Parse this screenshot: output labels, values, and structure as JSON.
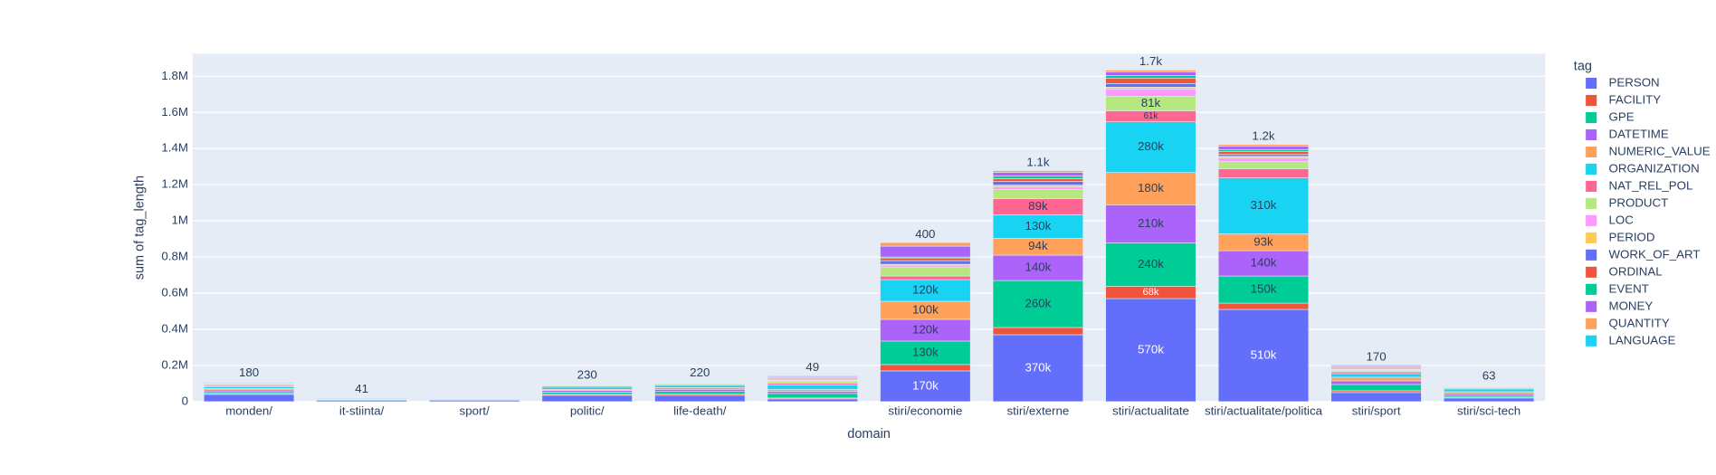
{
  "chart_data": {
    "type": "bar",
    "stacked": true,
    "x_label": "domain",
    "y_label": "sum of tag_length",
    "legend_title": "tag",
    "legend_position": "right",
    "grid": true,
    "categories": [
      "monden/",
      "it-stiinta/",
      "sport/",
      "politic/",
      "life-death/",
      null,
      "stiri/economie",
      "stiri/externe",
      "stiri/actualitate",
      "stiri/actualitate/politica",
      "stiri/sport",
      "stiri/sci-tech"
    ],
    "ylim": [
      0,
      1925000
    ],
    "yticks": [
      0,
      {
        "value": 200000,
        "label": "0.2M"
      },
      {
        "value": 400000,
        "label": "0.4M"
      },
      {
        "value": 600000,
        "label": "0.6M"
      },
      {
        "value": 800000,
        "label": "0.8M"
      },
      {
        "value": 1000000,
        "label": "1M"
      },
      {
        "value": 1200000,
        "label": "1.2M"
      },
      {
        "value": 1400000,
        "label": "1.4M"
      },
      {
        "value": 1600000,
        "label": "1.6M"
      },
      {
        "value": 1800000,
        "label": "1.8M"
      }
    ],
    "series": [
      {
        "name": "PERSON",
        "color": "#636efa",
        "values": [
          40000,
          8000,
          8000,
          35000,
          35000,
          15000,
          170000,
          370000,
          570000,
          510000,
          50000,
          20000
        ],
        "value_labels": [
          null,
          null,
          null,
          null,
          null,
          null,
          "170k",
          "370k",
          "570k",
          "510k",
          null,
          null
        ]
      },
      {
        "name": "FACILITY",
        "color": "#EF553B",
        "values": [
          5000,
          1000,
          1000,
          5000,
          6000,
          5000,
          35000,
          40000,
          68000,
          35000,
          10000,
          5000
        ],
        "value_labels": [
          null,
          null,
          null,
          null,
          null,
          null,
          null,
          null,
          "68k",
          null,
          null,
          null
        ]
      },
      {
        "name": "GPE",
        "color": "#00cc96",
        "values": [
          10000,
          2000,
          3000,
          12000,
          15000,
          25000,
          130000,
          260000,
          240000,
          150000,
          35000,
          10000
        ],
        "value_labels": [
          null,
          null,
          null,
          null,
          null,
          null,
          "130k",
          "260k",
          "240k",
          "150k",
          null,
          null
        ]
      },
      {
        "name": "DATETIME",
        "color": "#ab63fa",
        "values": [
          10000,
          3000,
          2000,
          10000,
          12000,
          12000,
          120000,
          140000,
          210000,
          140000,
          20000,
          10000
        ],
        "value_labels": [
          null,
          null,
          null,
          null,
          null,
          null,
          "120k",
          "140k",
          "210k",
          "140k",
          null,
          null
        ]
      },
      {
        "name": "NUMERIC_VALUE",
        "color": "#FFA15A",
        "values": [
          8000,
          2000,
          2000,
          6000,
          10000,
          10000,
          100000,
          94000,
          180000,
          93000,
          20000,
          10000
        ],
        "value_labels": [
          null,
          null,
          null,
          null,
          null,
          null,
          "100k",
          "94k",
          "180k",
          "93k",
          null,
          null
        ]
      },
      {
        "name": "ORGANIZATION",
        "color": "#19d3f3",
        "values": [
          10000,
          4000,
          3000,
          12000,
          12000,
          25000,
          120000,
          130000,
          280000,
          310000,
          20000,
          15000
        ],
        "value_labels": [
          null,
          null,
          null,
          null,
          null,
          null,
          "120k",
          "130k",
          "280k",
          "310k",
          null,
          null
        ]
      },
      {
        "name": "NAT_REL_POL",
        "color": "#FF6692",
        "values": [
          5000,
          1000,
          500,
          6000,
          5000,
          10000,
          20000,
          89000,
          61000,
          50000,
          10000,
          5000
        ],
        "value_labels": [
          null,
          null,
          null,
          null,
          null,
          null,
          null,
          "89k",
          "61k",
          null,
          null,
          null
        ]
      },
      {
        "name": "PRODUCT",
        "color": "#B6E880",
        "values": [
          8000,
          2000,
          500,
          4000,
          5000,
          10000,
          50000,
          50000,
          81000,
          40000,
          5000,
          5000
        ],
        "value_labels": [
          null,
          null,
          null,
          null,
          null,
          null,
          null,
          null,
          "81k",
          null,
          null,
          null
        ]
      },
      {
        "name": "LOC",
        "color": "#FF97FF",
        "values": [
          3000,
          500,
          300,
          2000,
          3000,
          5000,
          10000,
          15000,
          40000,
          20000,
          5000,
          3000
        ]
      },
      {
        "name": "PERIOD",
        "color": "#FECB52",
        "values": [
          2000,
          300,
          200,
          1000,
          2000,
          3000,
          5000,
          10000,
          10000,
          10000,
          3000,
          2000
        ]
      },
      {
        "name": "WORK_OF_ART",
        "color": "#636efa",
        "values": [
          4000,
          500,
          300,
          2000,
          3000,
          5000,
          20000,
          20000,
          20000,
          10000,
          5000,
          3000
        ]
      },
      {
        "name": "ORDINAL",
        "color": "#EF553B",
        "values": [
          2000,
          300,
          200,
          2000,
          2000,
          5000,
          15000,
          15000,
          30000,
          15000,
          5000,
          3000
        ]
      },
      {
        "name": "EVENT",
        "color": "#00cc96",
        "values": [
          2000,
          300,
          200,
          1000,
          2000,
          5000,
          5000,
          15000,
          15000,
          10000,
          5000,
          2000
        ]
      },
      {
        "name": "MONEY",
        "color": "#ab63fa",
        "values": [
          3000,
          500,
          300,
          2000,
          2000,
          5000,
          60000,
          20000,
          20000,
          20000,
          5000,
          3000
        ]
      },
      {
        "name": "QUANTITY",
        "color": "#FFA15A",
        "values": [
          2000,
          300,
          200,
          1000,
          1000,
          5000,
          20000,
          10000,
          10000,
          10000,
          5000,
          2000
        ]
      },
      {
        "name": "LANGUAGE",
        "color": "#19d3f3",
        "values": [
          180,
          41,
          null,
          230,
          220,
          49,
          400,
          1100,
          1700,
          1200,
          170,
          63
        ],
        "value_labels": [
          "180",
          "41",
          null,
          "230",
          "220",
          "49",
          "400",
          "1.1k",
          "1.7k",
          "1.2k",
          "170",
          "63"
        ]
      }
    ]
  }
}
